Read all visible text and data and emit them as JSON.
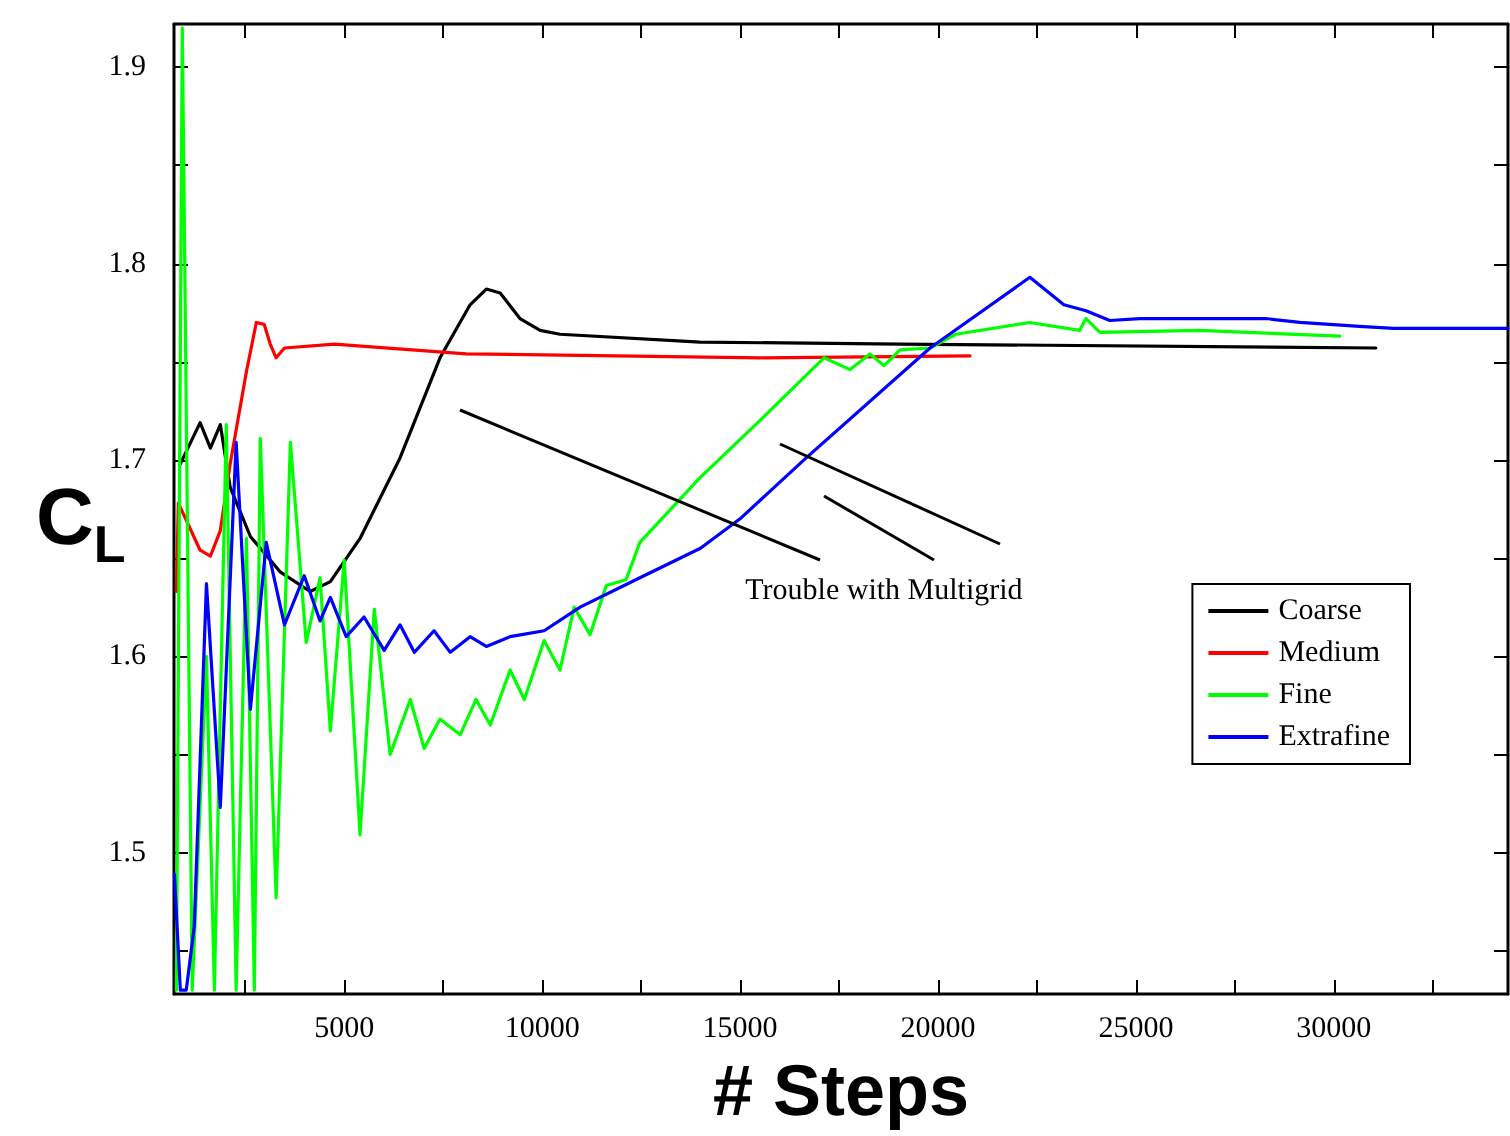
{
  "chart_data": {
    "type": "line",
    "xlabel": "# Steps",
    "ylabel": "C$_{L}$",
    "xlim": [
      700,
      34400
    ],
    "ylim": [
      1.428,
      1.922
    ],
    "xticks": [
      {
        "value": 2500,
        "label": null
      },
      5000,
      {
        "value": 7500,
        "label": null
      },
      10000,
      {
        "value": 12500,
        "label": null
      },
      15000,
      {
        "value": 17500,
        "label": null
      },
      20000,
      {
        "value": 22500,
        "label": null
      },
      25000,
      {
        "value": 27500,
        "label": null
      },
      30000,
      {
        "value": 32500,
        "label": null
      }
    ],
    "yticks": [
      {
        "value": 1.45,
        "label": null
      },
      1.5,
      {
        "value": 1.55,
        "label": null
      },
      1.6,
      {
        "value": 1.65,
        "label": null
      },
      1.7,
      {
        "value": 1.75,
        "label": null
      },
      1.8,
      {
        "value": 1.85,
        "label": null
      },
      1.9
    ],
    "grid": false,
    "legend": "right",
    "marker": "none",
    "line_style": "solid",
    "annotations": [
      "Trouble with Multigrid"
    ],
    "series": [
      {
        "name": "Coarse",
        "color": "#000000",
        "x": [
          860,
          1360,
          1620,
          1870,
          2120,
          2630,
          3380,
          4140,
          4650,
          5400,
          6410,
          7420,
          8180,
          8590,
          8940,
          9440,
          9950,
          10450,
          13990,
          19040,
          31060
        ],
        "values": [
          1.698,
          1.719,
          1.706,
          1.718,
          1.686,
          1.661,
          1.643,
          1.633,
          1.638,
          1.66,
          1.701,
          1.752,
          1.779,
          1.787,
          1.785,
          1.772,
          1.766,
          1.764,
          1.76,
          1.759,
          1.757
        ]
      },
      {
        "name": "Medium",
        "color": "#ff0000",
        "x": [
          760,
          810,
          1360,
          1620,
          1870,
          2120,
          2530,
          2780,
          2980,
          3130,
          3280,
          3490,
          4750,
          8080,
          15500,
          20810
        ],
        "values": [
          1.633,
          1.678,
          1.654,
          1.651,
          1.664,
          1.698,
          1.745,
          1.77,
          1.769,
          1.759,
          1.752,
          1.757,
          1.759,
          1.754,
          1.752,
          1.753
        ]
      },
      {
        "name": "Fine",
        "color": "#00ff00",
        "x": [
          760,
          910,
          1160,
          1520,
          1720,
          2020,
          2270,
          2530,
          2730,
          2880,
          3280,
          3640,
          4040,
          4390,
          4650,
          5000,
          5400,
          5760,
          6160,
          6670,
          7020,
          7420,
          7930,
          8330,
          8690,
          9190,
          9550,
          10050,
          10450,
          10810,
          11210,
          11620,
          12120,
          12470,
          13990,
          15500,
          17120,
          17780,
          18280,
          18640,
          19040,
          19800,
          20450,
          22320,
          23580,
          23740,
          24090,
          26610,
          30150
        ],
        "values": [
          1.43,
          1.92,
          1.43,
          1.6,
          1.43,
          1.718,
          1.43,
          1.66,
          1.43,
          1.711,
          1.477,
          1.709,
          1.607,
          1.64,
          1.562,
          1.649,
          1.509,
          1.624,
          1.55,
          1.578,
          1.553,
          1.568,
          1.56,
          1.578,
          1.565,
          1.593,
          1.578,
          1.608,
          1.593,
          1.625,
          1.611,
          1.636,
          1.639,
          1.658,
          1.691,
          1.72,
          1.752,
          1.746,
          1.754,
          1.748,
          1.756,
          1.757,
          1.764,
          1.77,
          1.766,
          1.772,
          1.765,
          1.766,
          1.763
        ]
      },
      {
        "name": "Extrafine",
        "color": "#0000ff",
        "x": [
          710,
          860,
          1010,
          1210,
          1520,
          1870,
          2270,
          2630,
          3030,
          3490,
          3990,
          4390,
          4650,
          5050,
          5500,
          6010,
          6410,
          6770,
          7270,
          7680,
          8180,
          8590,
          9190,
          10050,
          10960,
          12470,
          14000,
          15000,
          16670,
          19800,
          22320,
          23180,
          23740,
          24340,
          25100,
          28280,
          29140,
          30650,
          31510,
          34400
        ],
        "values": [
          1.489,
          1.43,
          1.43,
          1.462,
          1.637,
          1.523,
          1.709,
          1.573,
          1.658,
          1.616,
          1.641,
          1.618,
          1.63,
          1.61,
          1.62,
          1.603,
          1.616,
          1.602,
          1.613,
          1.602,
          1.61,
          1.605,
          1.61,
          1.613,
          1.625,
          1.64,
          1.655,
          1.67,
          1.701,
          1.757,
          1.793,
          1.779,
          1.776,
          1.771,
          1.772,
          1.772,
          1.77,
          1.768,
          1.767,
          1.767
        ]
      }
    ]
  }
}
